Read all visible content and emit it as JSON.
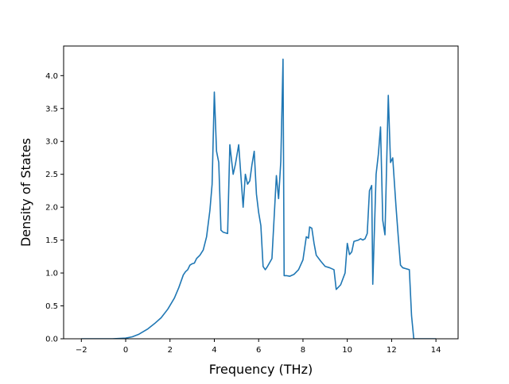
{
  "chart_data": {
    "type": "line",
    "title": "",
    "xlabel": "Frequency (THz)",
    "ylabel": "Density of States",
    "xlim": [
      -2.8,
      15.0
    ],
    "ylim": [
      0.0,
      4.45
    ],
    "xticks": [
      -2,
      0,
      2,
      4,
      6,
      8,
      10,
      12,
      14
    ],
    "yticks": [
      0.0,
      0.5,
      1.0,
      1.5,
      2.0,
      2.5,
      3.0,
      3.5,
      4.0
    ],
    "xtick_labels": [
      "−2",
      "0",
      "2",
      "4",
      "6",
      "8",
      "10",
      "12",
      "14"
    ],
    "ytick_labels": [
      "0.0",
      "0.5",
      "1.0",
      "1.5",
      "2.0",
      "2.5",
      "3.0",
      "3.5",
      "4.0"
    ],
    "grid": false,
    "legend": "none",
    "series": [
      {
        "color": "#1f77b4",
        "x": [
          -2.0,
          -0.6,
          0.0,
          0.3,
          0.6,
          1.0,
          1.3,
          1.6,
          1.9,
          2.2,
          2.4,
          2.6,
          2.7,
          2.8,
          2.9,
          3.0,
          3.1,
          3.2,
          3.35,
          3.5,
          3.65,
          3.8,
          3.9,
          4.0,
          4.1,
          4.2,
          4.3,
          4.4,
          4.6,
          4.7,
          4.85,
          4.95,
          5.1,
          5.3,
          5.4,
          5.5,
          5.6,
          5.7,
          5.8,
          5.9,
          6.0,
          6.1,
          6.2,
          6.3,
          6.4,
          6.6,
          6.8,
          6.9,
          7.0,
          7.1,
          7.15,
          7.25,
          7.4,
          7.6,
          7.8,
          8.0,
          8.15,
          8.25,
          8.3,
          8.4,
          8.5,
          8.6,
          8.8,
          9.0,
          9.2,
          9.4,
          9.5,
          9.7,
          9.9,
          10.0,
          10.1,
          10.2,
          10.3,
          10.5,
          10.6,
          10.7,
          10.8,
          10.9,
          11.0,
          11.1,
          11.15,
          11.3,
          11.4,
          11.5,
          11.6,
          11.7,
          11.85,
          11.95,
          12.05,
          12.2,
          12.3,
          12.4,
          12.5,
          12.8,
          12.9,
          13.0,
          14.0
        ],
        "y": [
          0.0,
          0.0,
          0.01,
          0.03,
          0.07,
          0.15,
          0.23,
          0.32,
          0.45,
          0.62,
          0.78,
          0.97,
          1.02,
          1.05,
          1.12,
          1.14,
          1.15,
          1.22,
          1.27,
          1.35,
          1.55,
          1.95,
          2.35,
          3.75,
          2.85,
          2.68,
          1.65,
          1.62,
          1.6,
          2.95,
          2.5,
          2.65,
          2.95,
          2.0,
          2.5,
          2.35,
          2.4,
          2.65,
          2.85,
          2.2,
          1.92,
          1.72,
          1.1,
          1.05,
          1.1,
          1.22,
          2.48,
          2.13,
          2.7,
          4.25,
          0.96,
          0.96,
          0.95,
          0.98,
          1.05,
          1.2,
          1.55,
          1.53,
          1.7,
          1.68,
          1.45,
          1.27,
          1.18,
          1.1,
          1.08,
          1.05,
          0.75,
          0.82,
          1.0,
          1.45,
          1.28,
          1.32,
          1.48,
          1.5,
          1.52,
          1.5,
          1.52,
          1.6,
          2.25,
          2.33,
          0.83,
          2.5,
          2.8,
          3.22,
          1.8,
          1.58,
          3.7,
          2.68,
          2.75,
          2.0,
          1.55,
          1.12,
          1.08,
          1.05,
          0.35,
          0.0,
          0.0
        ]
      }
    ]
  }
}
